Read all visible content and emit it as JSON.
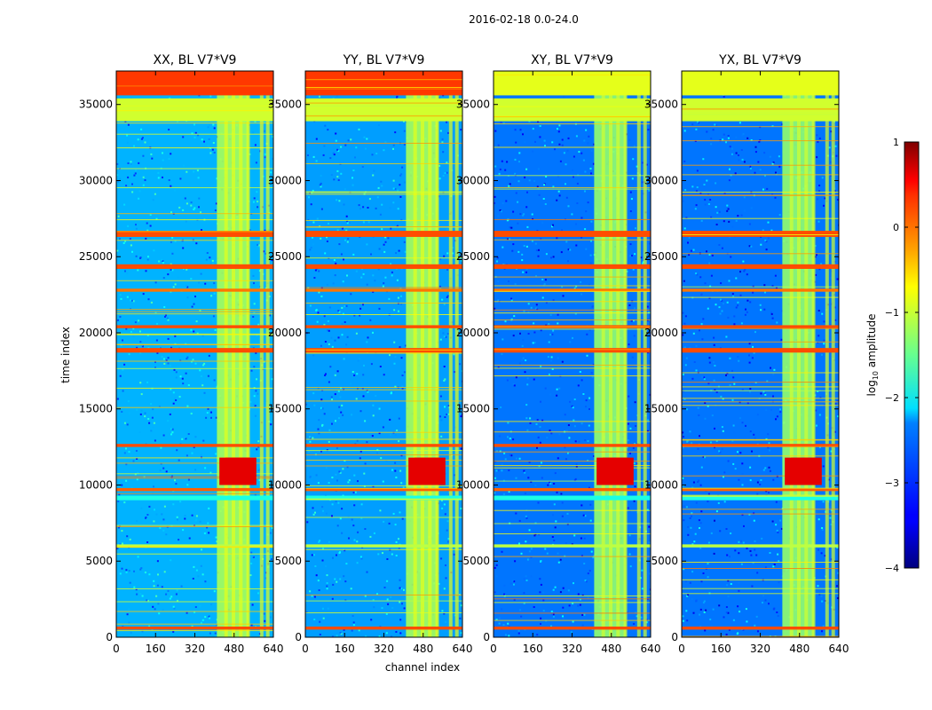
{
  "figure_title": "2016-02-18 0.0-24.0",
  "chart_data": {
    "type": "heatmap",
    "xlabel": "channel index",
    "ylabel": "time index",
    "xlim": [
      0,
      640
    ],
    "ylim": [
      0,
      37200
    ],
    "xticks": [
      0,
      160,
      320,
      480,
      640
    ],
    "yticks": [
      0,
      5000,
      10000,
      15000,
      20000,
      25000,
      30000,
      35000
    ],
    "colorbar": {
      "label": "log",
      "label_sub": "10",
      "label_suffix": " amplitude",
      "range": [
        -4,
        1
      ],
      "ticks": [
        1,
        0,
        -1,
        -2,
        -3,
        -4
      ],
      "tick_labels": [
        "1",
        "0",
        "−1",
        "−2",
        "−3",
        "−4"
      ]
    },
    "panels": [
      {
        "title": "XX, BL V7*V9",
        "base_level": -2.5,
        "center_level": -1.3,
        "top_level": 0.1
      },
      {
        "title": "YY, BL V7*V9",
        "base_level": -2.6,
        "center_level": -1.3,
        "top_level": 0.1
      },
      {
        "title": "XY, BL V7*V9",
        "base_level": -2.8,
        "center_level": -1.4,
        "top_level": -1.0
      },
      {
        "title": "YX, BL V7*V9",
        "base_level": -2.8,
        "center_level": -1.4,
        "top_level": -1.0
      }
    ],
    "band_levels": [
      {
        "t0": 33900,
        "t1": 35400,
        "level": -1.1
      },
      {
        "t0": 26300,
        "t1": 26700,
        "level": 0.0
      },
      {
        "t0": 24200,
        "t1": 24500,
        "level": 0.0
      },
      {
        "t0": 22700,
        "t1": 22900,
        "level": -0.2
      },
      {
        "t0": 20300,
        "t1": 20500,
        "level": 0.0
      },
      {
        "t0": 18700,
        "t1": 19000,
        "level": 0.0
      },
      {
        "t0": 12500,
        "t1": 12700,
        "level": 0.0
      },
      {
        "t0": 9600,
        "t1": 9800,
        "level": -0.1
      },
      {
        "t0": 9000,
        "t1": 9300,
        "level": -2.0
      },
      {
        "t0": 5900,
        "t1": 6100,
        "level": -1.2
      },
      {
        "t0": 500,
        "t1": 700,
        "level": 0.0
      }
    ]
  }
}
